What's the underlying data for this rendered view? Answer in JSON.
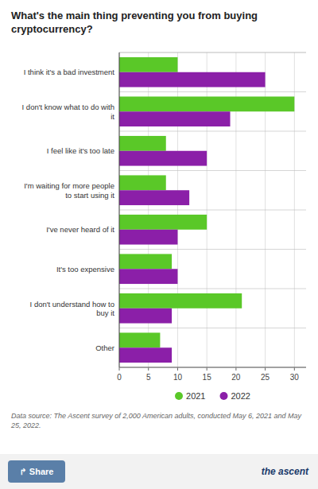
{
  "chart_data": {
    "type": "bar",
    "orientation": "horizontal",
    "title": "What's the main thing preventing you from buying\ncryptocurrency?",
    "categories": [
      "I think it's a bad investment",
      "I don't know what to do with\nit",
      "I feel like it's too late",
      "I'm waiting for more people\nto start using it",
      "I've never heard of it",
      "It's too expensive",
      "I don't understand how to\nbuy it",
      "Other"
    ],
    "series": [
      {
        "name": "2021",
        "color": "#5ac828",
        "values": [
          10,
          30,
          8,
          8,
          15,
          9,
          21,
          7
        ]
      },
      {
        "name": "2022",
        "color": "#8b1fa8",
        "values": [
          25,
          19,
          15,
          12,
          10,
          10,
          9,
          9
        ]
      }
    ],
    "xlim": [
      0,
      32
    ],
    "xticks": [
      0,
      5,
      10,
      15,
      20,
      25,
      30
    ],
    "grid": true,
    "legend": "bottom",
    "footnote": "Data source: The Ascent survey of 2,000 American adults, conducted May 6, 2021 and May 25, 2022.",
    "annotations": [
      "↱ Share",
      "the ascent"
    ]
  }
}
